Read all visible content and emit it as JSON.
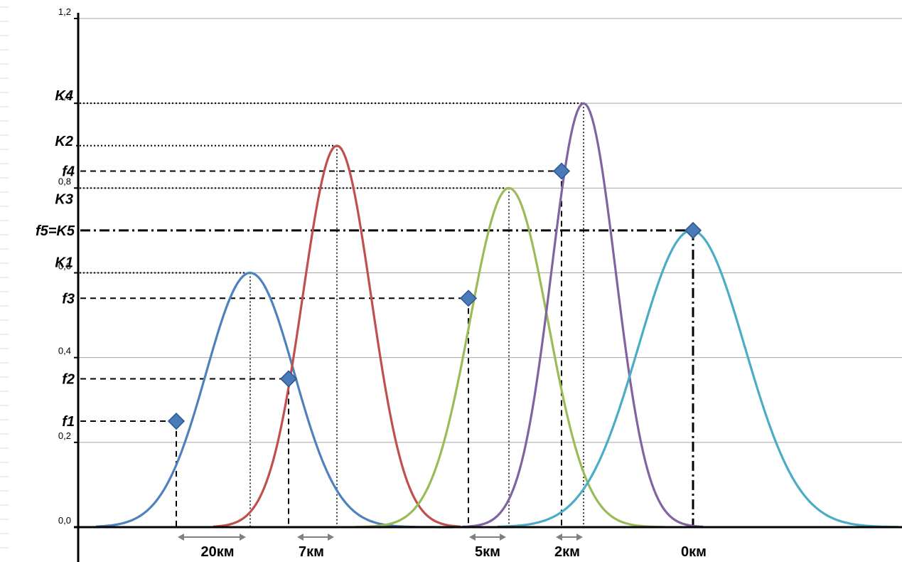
{
  "chart_data": {
    "type": "line",
    "title": "",
    "xlabel": "",
    "ylabel": "",
    "ylim": [
      0,
      1.2
    ],
    "grid": true,
    "y_ticks": [
      "0,0",
      "0,2",
      "0,4",
      "0,6",
      "0,8",
      "1,0",
      "1,2"
    ],
    "series": [
      {
        "color": "#4f81bd",
        "peak": 0.6
      },
      {
        "color": "#c0504d",
        "peak": 0.9
      },
      {
        "color": "#9bbb59",
        "peak": 0.8
      },
      {
        "color": "#8064a2",
        "peak": 1.0
      },
      {
        "color": "#4bacc6",
        "peak": 0.7
      }
    ],
    "markers": [
      {
        "label": "f1",
        "y": 0.25
      },
      {
        "label": "f2",
        "y": 0.35
      },
      {
        "label": "f3",
        "y": 0.54
      },
      {
        "label": "f4",
        "y": 0.84
      },
      {
        "label": "f5=K5",
        "y": 0.7
      }
    ],
    "peak_labels": [
      {
        "label": "K1",
        "y": 0.6
      },
      {
        "label": "K2",
        "y": 0.9
      },
      {
        "label": "K3",
        "y": 0.8
      },
      {
        "label": "K4",
        "y": 1.0
      }
    ],
    "distance_labels": [
      "20км",
      "7км",
      "5км",
      "2км",
      "0км"
    ],
    "colors": {
      "axis": "#000000",
      "grid": "#a6a6a6",
      "marker": "#4a7ab7",
      "marker_edge": "#2b5690"
    }
  }
}
